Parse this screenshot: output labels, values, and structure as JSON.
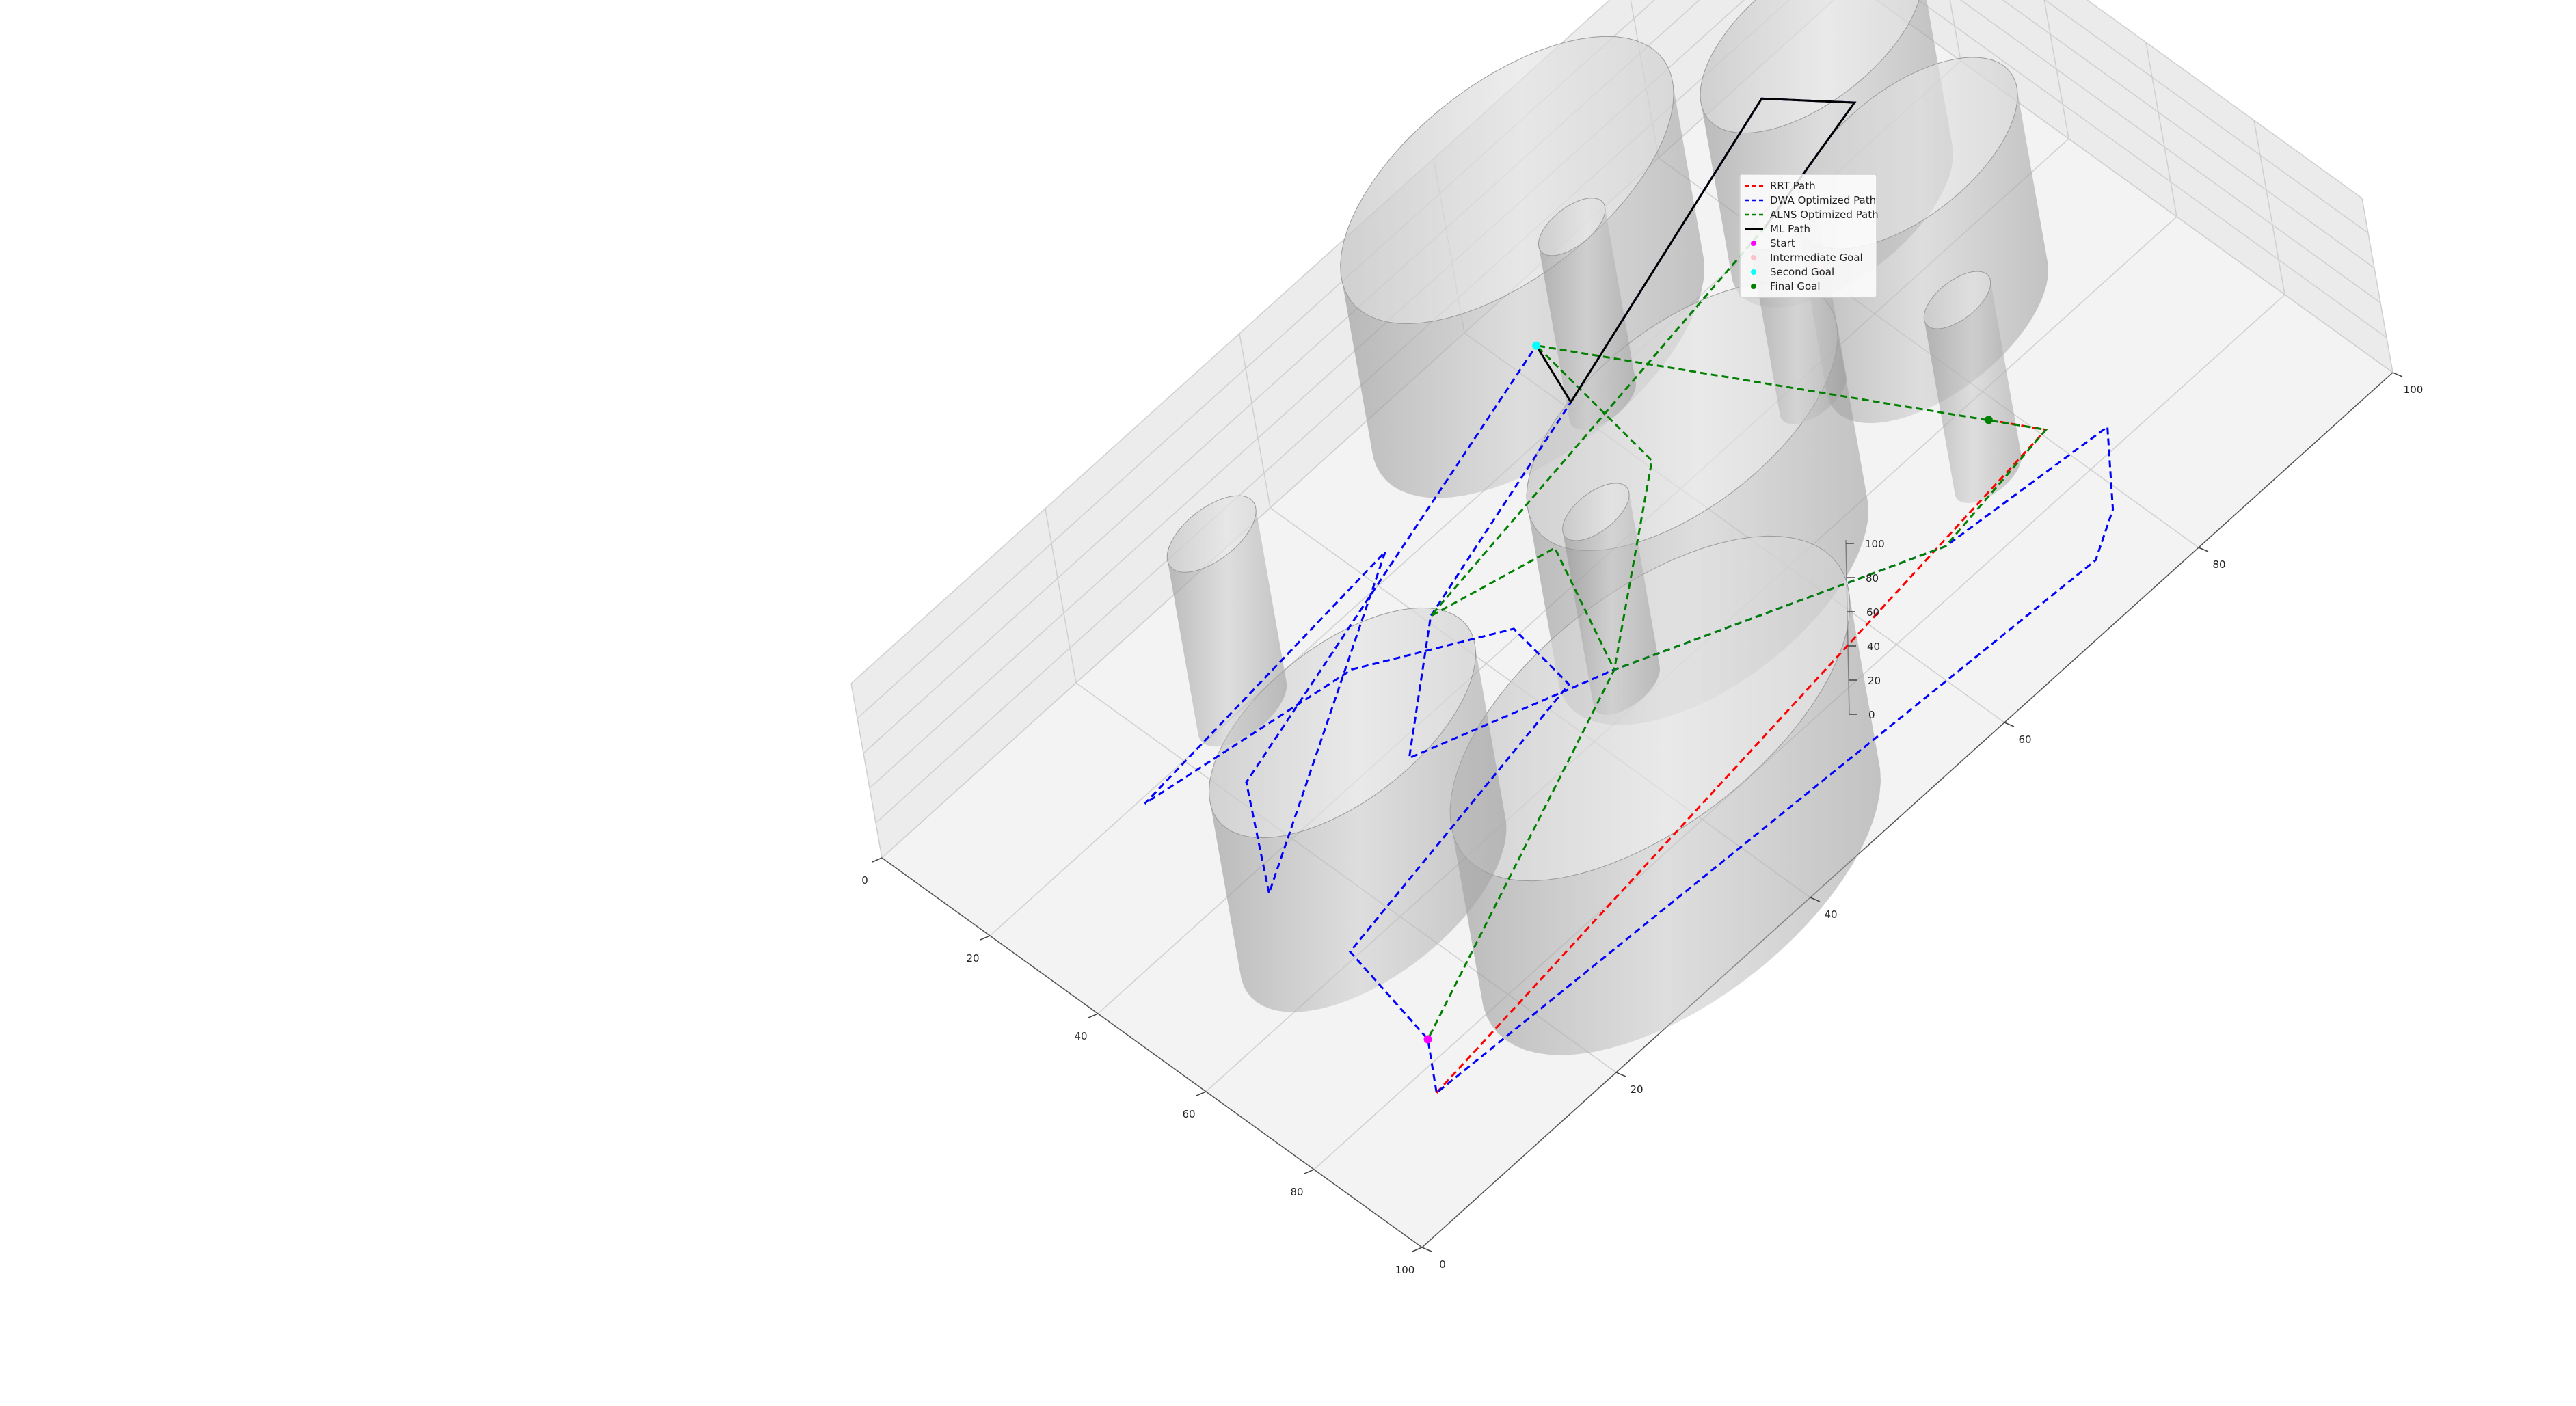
{
  "chart_data": {
    "type": "scatter",
    "projection": "3d",
    "title": "",
    "xlabel": "",
    "ylabel": "",
    "zlabel": "",
    "xlim": [
      0,
      100
    ],
    "ylim": [
      0,
      100
    ],
    "zlim": [
      0,
      100
    ],
    "x_ticks": [
      "0",
      "20",
      "40",
      "60",
      "80",
      "100"
    ],
    "y_ticks": [
      "0",
      "20",
      "40",
      "60",
      "80",
      "100"
    ],
    "z_ticks": [
      "0",
      "20",
      "40",
      "60",
      "80",
      "100"
    ],
    "grid": true,
    "legend_position": "top-right",
    "obstacles": [
      {
        "label": "cylinder",
        "cx": 10,
        "cy": 62,
        "r": 15,
        "height": 100
      },
      {
        "label": "cylinder",
        "cx": 25,
        "cy": 85,
        "r": 10,
        "height": 100
      },
      {
        "label": "cylinder",
        "cx": 48,
        "cy": 82,
        "r": 10,
        "height": 100
      },
      {
        "label": "cylinder",
        "cx": 55,
        "cy": 55,
        "r": 14,
        "height": 100
      },
      {
        "label": "cylinder",
        "cx": 85,
        "cy": 35,
        "r": 18,
        "height": 100
      },
      {
        "label": "cylinder",
        "cx": 55,
        "cy": 20,
        "r": 12,
        "height": 100
      },
      {
        "label": "cylinder",
        "cx": 20,
        "cy": 26,
        "r": 4,
        "height": 100
      },
      {
        "label": "cylinder",
        "cx": 43,
        "cy": 72,
        "r": 3,
        "height": 100
      },
      {
        "label": "cylinder",
        "cx": 70,
        "cy": 75,
        "r": 3,
        "height": 100
      },
      {
        "label": "cylinder",
        "cx": 22,
        "cy": 62,
        "r": 3,
        "height": 100
      },
      {
        "label": "cylinder",
        "cx": 57,
        "cy": 45,
        "r": 3,
        "height": 100
      }
    ],
    "series": [
      {
        "name": "RRT Path",
        "style": "dashed",
        "color": "#ff0000",
        "points": [
          [
            85,
            10,
            5
          ],
          [
            72,
            80,
            5
          ],
          [
            65,
            78,
            5
          ]
        ]
      },
      {
        "name": "DWA Optimized Path",
        "style": "dashed",
        "color": "#0000ff",
        "points": [
          [
            20,
            80,
            5
          ],
          [
            15,
            92,
            5
          ],
          [
            5,
            88,
            5
          ],
          [
            20,
            60,
            5
          ],
          [
            30,
            40,
            5
          ],
          [
            44,
            30,
            5
          ],
          [
            55,
            45,
            5
          ],
          [
            75,
            68,
            5
          ],
          [
            78,
            83,
            5
          ],
          [
            88,
            78,
            5
          ],
          [
            92,
            74,
            5
          ],
          [
            85,
            10,
            5
          ],
          [
            78,
            13,
            5
          ],
          [
            60,
            15,
            5
          ],
          [
            52,
            42,
            5
          ],
          [
            40,
            43,
            5
          ],
          [
            28,
            33,
            5
          ],
          [
            22,
            15,
            5
          ],
          [
            18,
            42,
            5
          ],
          [
            45,
            15,
            5
          ],
          [
            30,
            21,
            5
          ],
          [
            10,
            62,
            5
          ]
        ]
      },
      {
        "name": "ALNS Optimized Path",
        "style": "dashed",
        "color": "#008000",
        "points": [
          [
            20,
            80,
            5
          ],
          [
            30,
            40,
            5
          ],
          [
            35,
            50,
            5
          ],
          [
            55,
            45,
            5
          ],
          [
            75,
            68,
            5
          ],
          [
            72,
            80,
            5
          ],
          [
            10,
            62,
            5
          ],
          [
            35,
            60,
            5
          ],
          [
            55,
            45,
            5
          ],
          [
            78,
            13,
            5
          ]
        ]
      },
      {
        "name": "ML Path",
        "style": "solid",
        "color": "#000000",
        "points": [
          [
            20,
            80,
            5
          ],
          [
            15,
            92,
            5
          ],
          [
            5,
            88,
            5
          ],
          [
            20,
            60,
            5
          ],
          [
            10,
            62,
            5
          ]
        ]
      }
    ],
    "markers": [
      {
        "name": "Start",
        "color": "#ff00ff",
        "x": 78,
        "y": 13,
        "z": 5
      },
      {
        "name": "Intermediate Goal",
        "color": "#ffc0cb",
        "x": 30,
        "y": 80,
        "z": 5
      },
      {
        "name": "Second Goal",
        "color": "#00ffff",
        "x": 10,
        "y": 62,
        "z": 5
      },
      {
        "name": "Final Goal",
        "color": "#008000",
        "x": 65,
        "y": 78,
        "z": 5
      }
    ],
    "legend": [
      {
        "label": "RRT Path",
        "kind": "dashed",
        "color": "#ff0000"
      },
      {
        "label": "DWA Optimized Path",
        "kind": "dashed",
        "color": "#0000ff"
      },
      {
        "label": "ALNS Optimized Path",
        "kind": "dashed",
        "color": "#008000"
      },
      {
        "label": "ML Path",
        "kind": "solid",
        "color": "#000000"
      },
      {
        "label": "Start",
        "kind": "marker",
        "color": "#ff00ff"
      },
      {
        "label": "Intermediate Goal",
        "kind": "marker",
        "color": "#ffc0cb"
      },
      {
        "label": "Second Goal",
        "kind": "marker",
        "color": "#00ffff"
      },
      {
        "label": "Final Goal",
        "kind": "marker",
        "color": "#008000"
      }
    ]
  }
}
